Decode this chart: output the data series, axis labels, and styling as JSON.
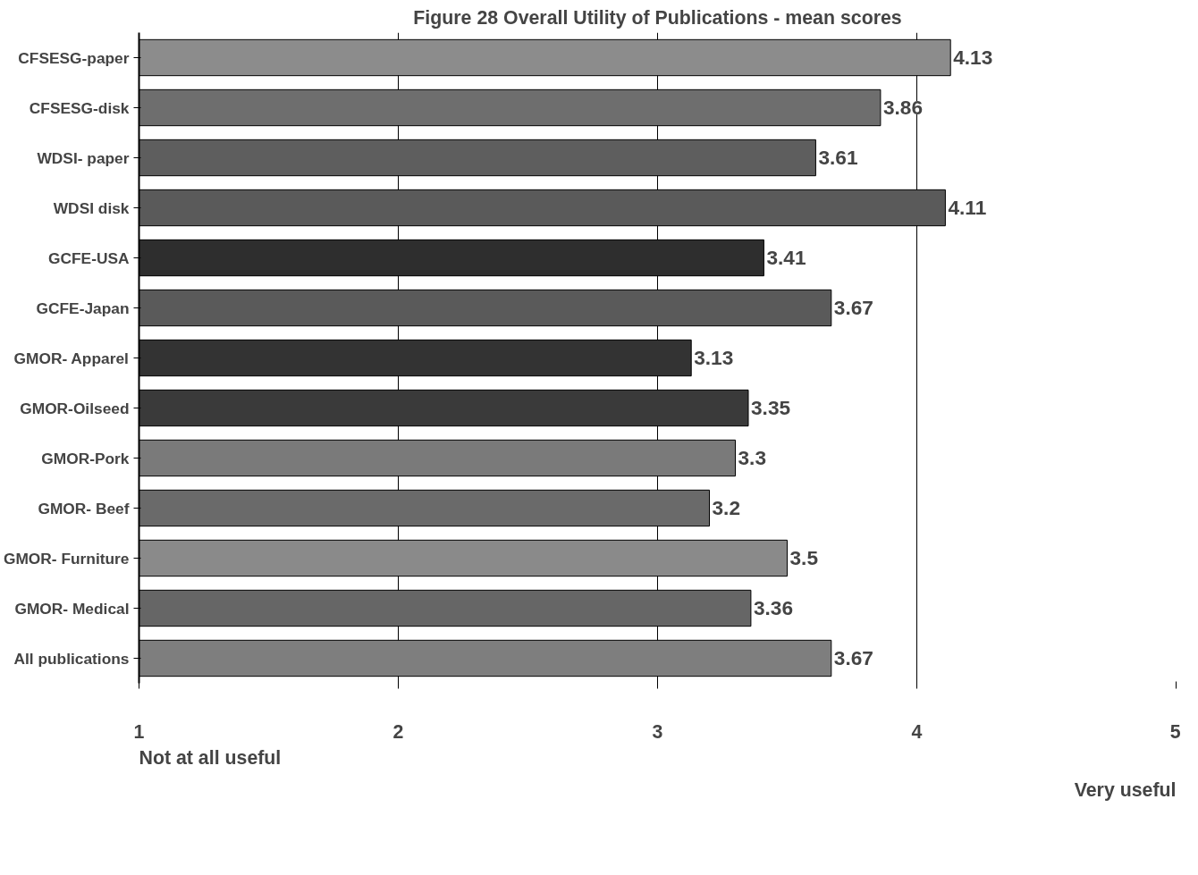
{
  "chart_data": {
    "type": "bar",
    "orientation": "horizontal",
    "title": "Figure 28 Overall Utility of Publications - mean scores",
    "categories": [
      "CFSESG-paper",
      "CFSESG-disk",
      "WDSI- paper",
      "WDSI disk",
      "GCFE-USA",
      "GCFE-Japan",
      "GMOR- Apparel",
      "GMOR-Oilseed",
      "GMOR-Pork",
      "GMOR- Beef",
      "GMOR- Furniture",
      "GMOR- Medical",
      "All publications"
    ],
    "values": [
      4.13,
      3.86,
      3.61,
      4.11,
      3.41,
      3.67,
      3.13,
      3.35,
      3.3,
      3.2,
      3.5,
      3.36,
      3.67
    ],
    "colors": [
      "#8c8c8c",
      "#6e6e6e",
      "#5e5e5e",
      "#5a5a5a",
      "#2e2e2e",
      "#5a5a5a",
      "#333333",
      "#3a3a3a",
      "#7a7a7a",
      "#6a6a6a",
      "#8a8a8a",
      "#666666",
      "#7e7e7e"
    ],
    "xlim": [
      1,
      5
    ],
    "xticks": [
      1,
      2,
      3,
      4,
      5
    ],
    "grid": "x",
    "data_labels": true,
    "annotations": [
      "Not at all useful",
      "Very useful"
    ]
  }
}
